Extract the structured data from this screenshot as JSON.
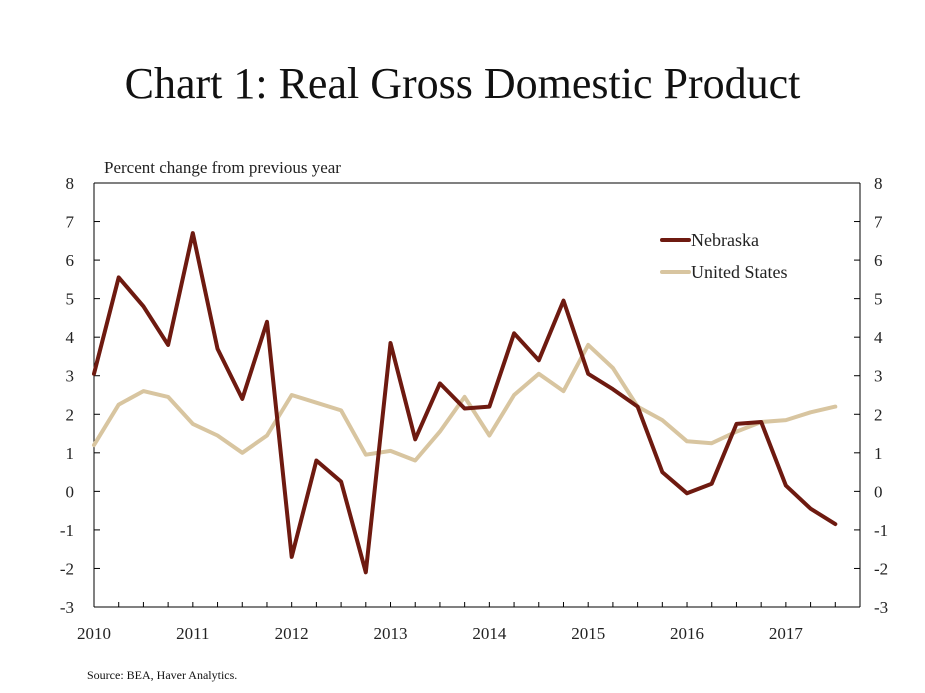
{
  "title": "Chart 1: Real Gross Domestic Product",
  "source": "Source: BEA, Haver Analytics.",
  "chart_data": {
    "type": "line",
    "title": "Chart 1: Real Gross Domestic Product",
    "ylabel": "Percent change from previous year",
    "xlabel": "",
    "ylim": [
      -3,
      8
    ],
    "yticks": [
      "8",
      "7",
      "6",
      "5",
      "4",
      "3",
      "2",
      "1",
      "0",
      "-1",
      "-2",
      "-3"
    ],
    "xlim": [
      2010,
      2017.75
    ],
    "xticks": [
      "2010",
      "2011",
      "2012",
      "2013",
      "2014",
      "2015",
      "2016",
      "2017"
    ],
    "secondary_y_axis": true,
    "grid": false,
    "legend_position": "top-right",
    "series": [
      {
        "name": "Nebraska",
        "color": "#6e1a10",
        "x": [
          2010.0,
          2010.25,
          2010.5,
          2010.75,
          2011.0,
          2011.25,
          2011.5,
          2011.75,
          2012.0,
          2012.25,
          2012.5,
          2012.75,
          2013.0,
          2013.25,
          2013.5,
          2013.75,
          2014.0,
          2014.25,
          2014.5,
          2014.75,
          2015.0,
          2015.25,
          2015.5,
          2015.75,
          2016.0,
          2016.25,
          2016.5,
          2016.75,
          2017.0,
          2017.25,
          2017.5
        ],
        "values": [
          3.05,
          5.55,
          4.8,
          3.8,
          6.7,
          3.7,
          2.4,
          4.4,
          -1.7,
          0.8,
          0.25,
          -2.1,
          3.85,
          1.35,
          2.8,
          2.15,
          2.2,
          4.1,
          3.4,
          4.95,
          3.05,
          2.65,
          2.2,
          0.5,
          -0.05,
          0.2,
          1.75,
          1.8,
          0.15,
          -0.45,
          -0.85
        ]
      },
      {
        "name": "United States",
        "color": "#d8c5a0",
        "x": [
          2010.0,
          2010.25,
          2010.5,
          2010.75,
          2011.0,
          2011.25,
          2011.5,
          2011.75,
          2012.0,
          2012.25,
          2012.5,
          2012.75,
          2013.0,
          2013.25,
          2013.5,
          2013.75,
          2014.0,
          2014.25,
          2014.5,
          2014.75,
          2015.0,
          2015.25,
          2015.5,
          2015.75,
          2016.0,
          2016.25,
          2016.5,
          2016.75,
          2017.0,
          2017.25,
          2017.5
        ],
        "values": [
          1.2,
          2.25,
          2.6,
          2.45,
          1.75,
          1.45,
          1.0,
          1.45,
          2.5,
          2.3,
          2.1,
          0.95,
          1.05,
          0.8,
          1.55,
          2.45,
          1.45,
          2.5,
          3.05,
          2.6,
          3.8,
          3.2,
          2.2,
          1.85,
          1.3,
          1.25,
          1.55,
          1.8,
          1.85,
          2.05,
          2.2
        ]
      }
    ]
  }
}
